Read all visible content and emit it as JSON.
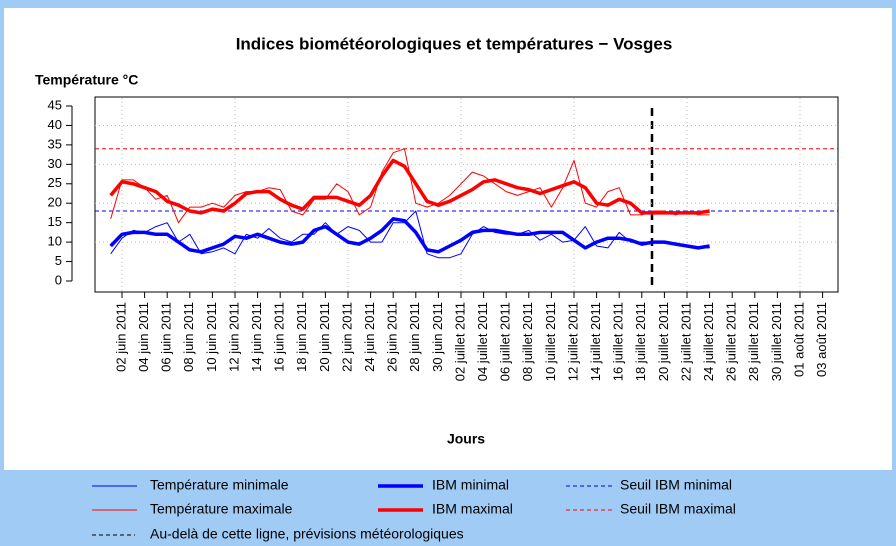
{
  "chart_data": {
    "type": "line",
    "title": "Indices biométéorologiques et températures − Vosges",
    "y_label": "Température °C",
    "x_label": "Jours",
    "categories": [
      null,
      "02 juin 2011",
      null,
      "04 juin 2011",
      null,
      "06 juin 2011",
      null,
      "08 juin 2011",
      null,
      "10 juin 2011",
      null,
      "12 juin 2011",
      null,
      "14 juin 2011",
      null,
      "16 juin 2011",
      null,
      "18 juin 2011",
      null,
      "20 juin 2011",
      null,
      "22 juin 2011",
      null,
      "24 juin 2011",
      null,
      "26 juin 2011",
      null,
      "28 juin 2011",
      null,
      "30 juin 2011",
      null,
      "02 juillet 2011",
      null,
      "04 juillet 2011",
      null,
      "06 juillet 2011",
      null,
      "08 juillet 2011",
      null,
      "10 juillet 2011",
      null,
      "12 juillet 2011",
      null,
      "14 juillet 2011",
      null,
      "16 juillet 2011",
      null,
      "18 juillet 2011",
      null,
      "20 juillet 2011",
      null,
      "22 juillet 2011",
      null,
      "24 juillet 2011",
      null,
      "26 juillet 2011",
      null,
      "28 juillet 2011",
      null,
      "30 juillet 2011",
      null,
      "01 août 2011",
      null,
      "03 août 2011"
    ],
    "series": [
      {
        "name": "Température minimale",
        "color": "#0000ff",
        "line_width": 1,
        "values": [
          7,
          11,
          13,
          12.5,
          14,
          15,
          10,
          12,
          7,
          7.5,
          8.5,
          7,
          12,
          11,
          13.5,
          11,
          10,
          12,
          12,
          15,
          12,
          14,
          13,
          10,
          10,
          15,
          15,
          18,
          7,
          6,
          6,
          7,
          12,
          14,
          12.5,
          12,
          12,
          13,
          10.5,
          12,
          10,
          10.5,
          14,
          9,
          8.5,
          12.5,
          10,
          10,
          10,
          10,
          9.5,
          9,
          8.5,
          8.5,
          null,
          null,
          null,
          null,
          null,
          null,
          null,
          null,
          null,
          null
        ]
      },
      {
        "name": "Température maximale",
        "color": "#ff0000",
        "line_width": 1,
        "values": [
          16,
          26,
          26,
          24,
          21,
          22,
          15,
          19,
          19,
          20,
          19,
          22,
          23,
          23,
          24,
          23.5,
          18,
          17,
          21,
          21,
          25,
          23,
          17,
          19,
          28,
          33,
          34,
          20,
          19,
          20,
          22,
          25,
          28,
          27,
          25,
          23,
          22,
          23,
          24,
          19,
          24,
          31,
          20,
          19,
          23,
          24,
          17,
          17,
          18,
          18,
          17,
          18,
          17,
          17,
          null,
          null,
          null,
          null,
          null,
          null,
          null,
          null,
          null,
          null
        ]
      },
      {
        "name": "IBM minimal",
        "color": "#0000ff",
        "line_width": 3.5,
        "values": [
          9,
          12,
          12.5,
          12.5,
          12,
          12,
          10,
          8,
          7.5,
          8.5,
          9.5,
          11.5,
          11,
          12,
          11,
          10,
          9.5,
          10,
          13,
          14,
          12,
          10,
          9.5,
          11,
          13,
          16,
          15.5,
          12.5,
          8,
          7.5,
          9,
          10.5,
          12.5,
          13,
          13,
          12.5,
          12,
          12,
          12.5,
          12.5,
          12.5,
          10.5,
          8.5,
          10,
          11,
          11,
          10.5,
          9.5,
          10,
          10,
          9.5,
          9,
          8.5,
          9,
          null,
          null,
          null,
          null,
          null,
          null,
          null,
          null,
          null,
          null
        ]
      },
      {
        "name": "IBM maximal",
        "color": "#ff0000",
        "line_width": 3.5,
        "values": [
          22,
          25.5,
          25,
          24,
          23,
          20.5,
          19.5,
          18,
          17.5,
          18.5,
          18,
          20,
          22.5,
          23,
          23,
          21,
          19.5,
          18.5,
          21.5,
          21.5,
          21.5,
          20.5,
          19.5,
          22,
          27,
          31,
          29.5,
          25,
          20.5,
          19.5,
          20.5,
          22,
          23.5,
          25.5,
          26,
          25,
          24,
          23.5,
          22.5,
          23.5,
          24.5,
          25.5,
          24,
          20,
          19.5,
          21,
          20,
          17.5,
          17.5,
          17.5,
          17.5,
          17.5,
          17.5,
          18,
          null,
          null,
          null,
          null,
          null,
          null,
          null,
          null,
          null,
          null
        ]
      }
    ],
    "thresholds": [
      {
        "name": "Seuil IBM minimal",
        "color": "#0000ff",
        "value": 18
      },
      {
        "name": "Seuil IBM maximal",
        "color": "#ff0000",
        "value": 34
      }
    ],
    "forecast_label": "Au-delà de cette ligne, prévisions météorologiques",
    "ylim": [
      0,
      45
    ],
    "yticks": [
      0,
      5,
      10,
      15,
      20,
      25,
      30,
      35,
      40,
      45
    ],
    "grid": true
  }
}
